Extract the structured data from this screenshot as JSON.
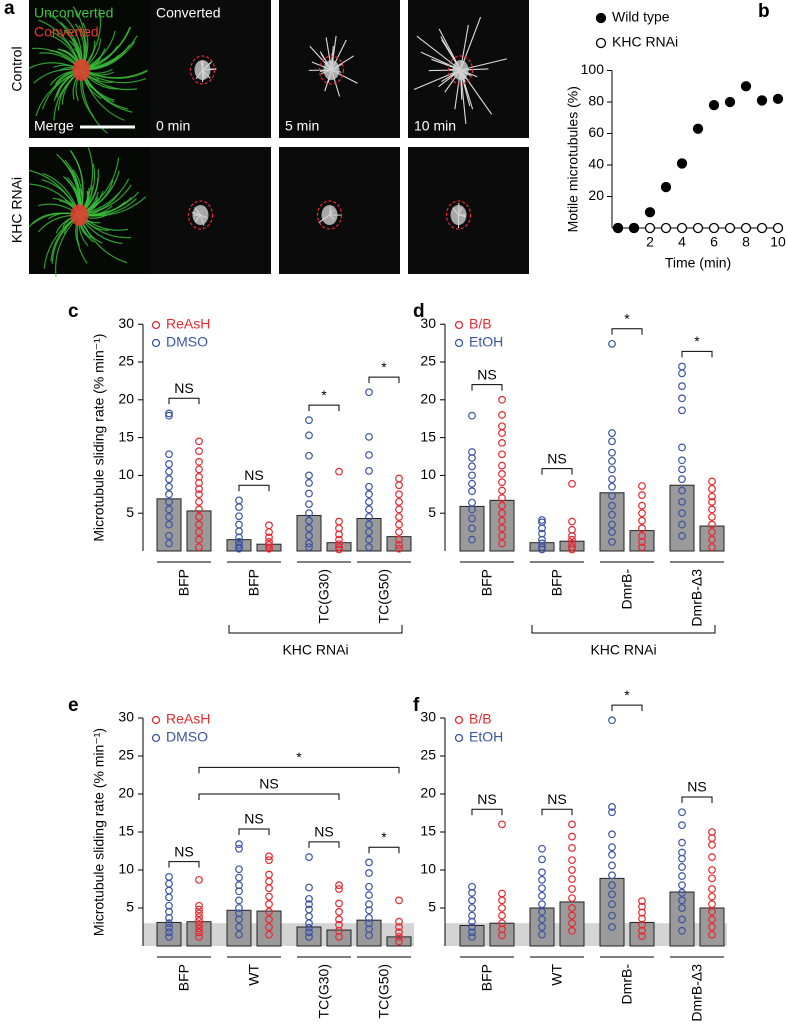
{
  "panel_a": {
    "letter": "a",
    "row_labels": [
      "Control",
      "KHC RNAi"
    ],
    "merge_legend": [
      "Unconverted",
      "Converted"
    ],
    "column_title": "Converted",
    "merge_label": "Merge",
    "time_labels": [
      "0 min",
      "5 min",
      "10 min"
    ]
  },
  "chart_data": [
    {
      "type": "scatter",
      "panel": "b",
      "xlabel": "Time (min)",
      "ylabel": "Motile microtubules (%)",
      "x": [
        0,
        1,
        2,
        3,
        4,
        5,
        6,
        7,
        8,
        9,
        10
      ],
      "series": [
        {
          "name": "Wild type",
          "color": "#000000",
          "filled": true,
          "values": [
            0,
            0,
            10,
            26,
            41,
            63,
            78,
            80,
            90,
            81,
            82
          ]
        },
        {
          "name": "KHC RNAi",
          "color": "#000000",
          "filled": false,
          "values": [
            0,
            0,
            0,
            0,
            0,
            0,
            0,
            0,
            0,
            0,
            0
          ]
        }
      ],
      "xlim": [
        0,
        10
      ],
      "ylim": [
        0,
        100
      ],
      "xticks": [
        2,
        4,
        6,
        8,
        10
      ],
      "yticks": [
        20,
        40,
        60,
        80,
        100
      ]
    },
    {
      "type": "bar",
      "panel": "c",
      "ylabel": "Microtubule sliding rate (% min⁻¹)",
      "categories": [
        "BFP",
        "BFP",
        "TC(G30)",
        "TC(G50)"
      ],
      "series": [
        {
          "name": "ReAsH",
          "color": "#e8292f",
          "values": [
            5.3,
            0.9,
            1.1,
            1.9
          ],
          "points": [
            [
              14.5,
              13.2,
              11.8,
              10.8,
              9.8,
              9,
              8.2,
              7.5,
              6.5,
              5.5,
              4.5,
              3.5,
              2.5,
              1.5,
              0.5
            ],
            [
              3.4,
              2.5,
              1.8,
              1.2,
              0.8,
              0.5,
              0.3
            ],
            [
              10.5,
              3.9,
              3,
              2.2,
              1.5,
              0.9,
              0.5,
              0.2
            ],
            [
              9.6,
              8.7,
              7.5,
              6.5,
              5.5,
              4.5,
              3.5,
              2.5,
              1.5,
              0.8,
              0.3
            ]
          ]
        },
        {
          "name": "DMSO",
          "color": "#3a55a4",
          "values": [
            6.9,
            1.5,
            4.7,
            4.3
          ],
          "points": [
            [
              18.2,
              17.9,
              12.8,
              11.5,
              10.5,
              9.5,
              8.5,
              7.5,
              6.5,
              5.5,
              4.5,
              3.5,
              2,
              1
            ],
            [
              6.7,
              5.8,
              4.6,
              3.5,
              2.6,
              1.8,
              1.2,
              0.8,
              0.5,
              0.3
            ],
            [
              17.3,
              15.3,
              12.6,
              10,
              9,
              7.6,
              6.2,
              5,
              4,
              3,
              2,
              1,
              0.5
            ],
            [
              21,
              15.1,
              12.7,
              10.6,
              8.5,
              7.5,
              6.5,
              5.5,
              4.5,
              3.5,
              2.5,
              1.5,
              0.5
            ]
          ]
        }
      ],
      "ylim": [
        0,
        30
      ],
      "yticks": [
        5,
        10,
        15,
        20,
        25,
        30
      ],
      "significance": [
        "NS",
        "NS",
        "*",
        "*"
      ],
      "group_label": "KHC RNAi"
    },
    {
      "type": "bar",
      "panel": "d",
      "categories": [
        "BFP",
        "BFP",
        "DmrB-",
        "DmrB-Δ3"
      ],
      "series": [
        {
          "name": "B/B",
          "color": "#e8292f",
          "values": [
            6.7,
            1.3,
            2.7,
            3.3
          ],
          "points": [
            [
              20,
              18,
              16.5,
              15.6,
              14.3,
              12.8,
              11.3,
              10.2,
              9.1,
              8,
              7,
              6,
              5,
              4,
              3,
              2,
              1
            ],
            [
              8.9,
              3.9,
              2.8,
              2,
              1.5,
              1,
              0.5,
              0.2
            ],
            [
              8.6,
              7.4,
              6,
              5,
              4,
              3,
              2,
              1.2,
              0.5
            ],
            [
              9.2,
              8.2,
              7.2,
              6.5,
              5.5,
              4.5,
              3.5,
              2.5,
              1.5,
              0.5
            ]
          ]
        },
        {
          "name": "EtOH",
          "color": "#3a55a4",
          "values": [
            5.9,
            1.1,
            7.7,
            8.7
          ],
          "points": [
            [
              17.9,
              13.1,
              12.3,
              11.2,
              10,
              8.9,
              7.9,
              6.4,
              5.5,
              4.3,
              3,
              1.5
            ],
            [
              4.1,
              3.8,
              3,
              2.3,
              1.5,
              1,
              0.5,
              0.2
            ],
            [
              27.4,
              15.6,
              14.5,
              13,
              11.9,
              10.8,
              9.5,
              8.5,
              7.3,
              6,
              4.8,
              3.5,
              2.5,
              1.2
            ],
            [
              24.4,
              23.5,
              21.8,
              20.2,
              18.6,
              13.7,
              12,
              10.8,
              9.5,
              8,
              6.5,
              5,
              3.5,
              2
            ]
          ]
        }
      ],
      "ylim": [
        0,
        30
      ],
      "yticks": [
        5,
        10,
        15,
        20,
        25,
        30
      ],
      "significance": [
        "NS",
        "NS",
        "*",
        "*"
      ],
      "group_label": "KHC RNAi"
    },
    {
      "type": "bar",
      "panel": "e",
      "ylabel": "Microtubule sliding rate (% min⁻¹)",
      "categories": [
        "BFP",
        "WT",
        "TC(G30)",
        "TC(G50)"
      ],
      "series": [
        {
          "name": "ReAsH",
          "color": "#e8292f",
          "values": [
            3.2,
            4.6,
            2.1,
            1.2
          ],
          "points": [
            [
              8.7,
              5.3,
              4.8,
              4.3,
              3.8,
              3.3,
              2.8,
              2.3,
              1.8,
              1.2
            ],
            [
              11.8,
              11.3,
              9.4,
              8.5,
              7.6,
              6.5,
              5.5,
              4.5,
              3.5,
              2.5,
              1.5
            ],
            [
              8,
              7.5,
              5.6,
              4.5,
              3.5,
              2.8,
              2,
              1.2
            ],
            [
              6,
              3.2,
              2.5,
              1.8,
              1.2,
              0.6
            ]
          ]
        },
        {
          "name": "DMSO",
          "color": "#3a55a4",
          "values": [
            3.1,
            4.7,
            2.5,
            3.4
          ],
          "points": [
            [
              9.1,
              8.2,
              7.3,
              6.4,
              5.3,
              4.5,
              3.7,
              3,
              2.4,
              1.8,
              1.2
            ],
            [
              13.4,
              12.8,
              10.1,
              9,
              8,
              7.2,
              6,
              5,
              4.3,
              3.5,
              2.5,
              1.5
            ],
            [
              11.7,
              7.7,
              6.2,
              5.5,
              4.8,
              3.9,
              3,
              2.4,
              1.8,
              1.2
            ],
            [
              11,
              9.6,
              7.8,
              6.7,
              5.5,
              4.7,
              3.7,
              3,
              2.2,
              1.4
            ]
          ]
        }
      ],
      "ylim": [
        0,
        30
      ],
      "yticks": [
        5,
        10,
        15,
        20,
        25,
        30
      ],
      "significance": [
        "NS",
        "NS",
        "NS",
        "*"
      ],
      "comparisons": [
        "NS",
        "*"
      ],
      "shaded_band": [
        0,
        3
      ]
    },
    {
      "type": "bar",
      "panel": "f",
      "categories": [
        "BFP",
        "WT",
        "DmrB-",
        "DmrB-Δ3"
      ],
      "series": [
        {
          "name": "B/B",
          "color": "#e8292f",
          "values": [
            3.0,
            5.8,
            3.1,
            5.0
          ],
          "points": [
            [
              16,
              6.9,
              6,
              5,
              4,
              3,
              2.2,
              1.4
            ],
            [
              16,
              14.4,
              12.9,
              11.3,
              10,
              8.8,
              7.5,
              6.3,
              5,
              4,
              3,
              2
            ],
            [
              5.9,
              5.2,
              4.4,
              3.6,
              2.8,
              2,
              1.3
            ],
            [
              15,
              14.2,
              13.3,
              11.7,
              10,
              8.9,
              7.5,
              6.5,
              5.5,
              4.5,
              3.5,
              2.5,
              1.5
            ]
          ]
        },
        {
          "name": "EtOH",
          "color": "#3a55a4",
          "values": [
            2.7,
            5.0,
            8.9,
            7.1
          ],
          "points": [
            [
              7.8,
              7,
              6,
              5,
              4,
              3.2,
              2.5,
              1.8,
              1.2
            ],
            [
              12.8,
              11.4,
              9.7,
              8.7,
              7.6,
              6.6,
              5.5,
              4.5,
              3.5,
              2.5,
              1.5
            ],
            [
              29.7,
              18.3,
              17.6,
              14.7,
              13,
              12,
              10.6,
              9.3,
              8,
              6.8,
              5.5,
              4,
              2.5
            ],
            [
              17.6,
              15.9,
              13.6,
              12.3,
              11.5,
              10.4,
              9.2,
              8,
              7,
              6,
              5,
              3.5,
              2
            ]
          ]
        }
      ],
      "ylim": [
        0,
        30
      ],
      "yticks": [
        5,
        10,
        15,
        20,
        25,
        30
      ],
      "significance": [
        "NS",
        "NS",
        "*",
        "NS"
      ],
      "shaded_band": [
        0,
        3
      ]
    }
  ]
}
